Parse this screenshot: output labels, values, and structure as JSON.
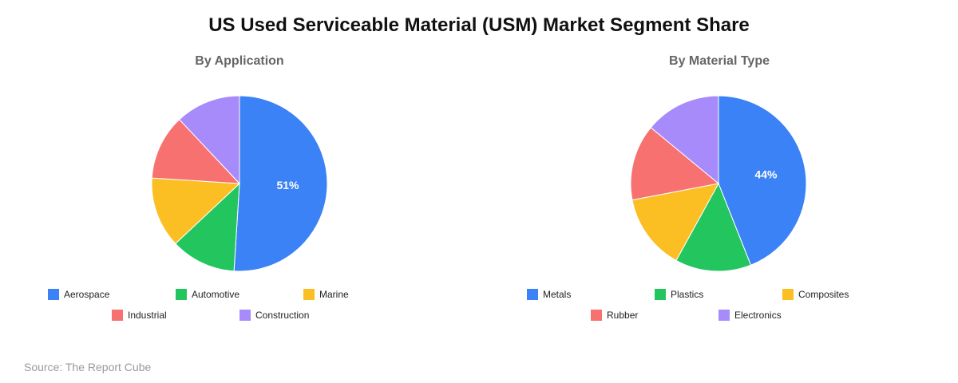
{
  "title": "US Used Serviceable Material (USM) Market Segment Share",
  "source": "Source: The Report Cube",
  "chart_data": [
    {
      "type": "pie",
      "title": "By Application",
      "categories": [
        "Aerospace",
        "Automotive",
        "Marine",
        "Industrial",
        "Construction"
      ],
      "values": [
        51,
        12,
        13,
        12,
        12
      ],
      "colors": [
        "#3b82f6",
        "#22c55e",
        "#fbbf24",
        "#f87171",
        "#a78bfa"
      ],
      "data_labels": [
        "51%",
        "",
        "",
        "",
        ""
      ],
      "legend_position": "bottom"
    },
    {
      "type": "pie",
      "title": "By Material Type",
      "categories": [
        "Metals",
        "Plastics",
        "Composites",
        "Rubber",
        "Electronics"
      ],
      "values": [
        44,
        14,
        14,
        14,
        14
      ],
      "colors": [
        "#3b82f6",
        "#22c55e",
        "#fbbf24",
        "#f87171",
        "#a78bfa"
      ],
      "data_labels": [
        "44%",
        "",
        "",
        "",
        ""
      ],
      "legend_position": "bottom"
    }
  ]
}
